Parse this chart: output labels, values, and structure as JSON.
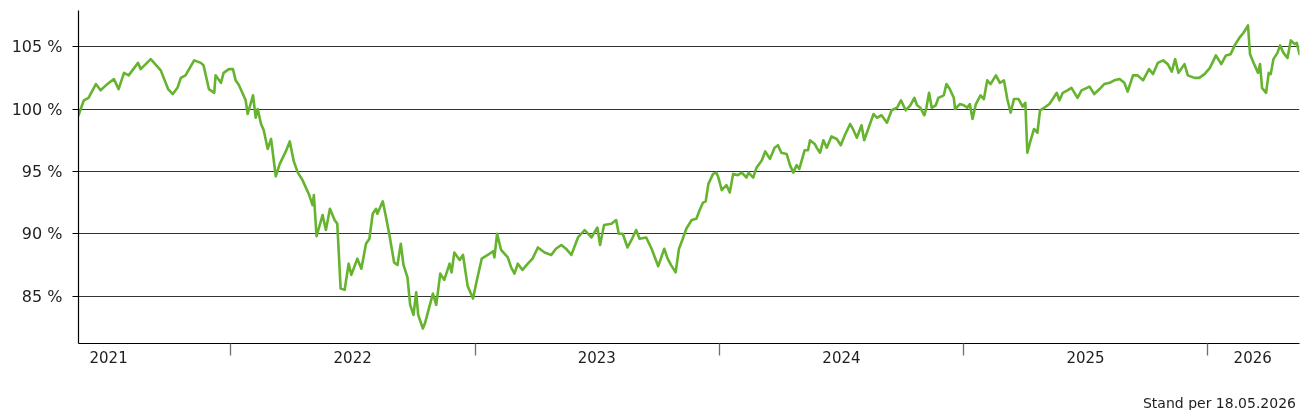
{
  "chart_data": {
    "type": "line",
    "x": [
      "2021-05-18",
      "2021-05-26",
      "2021-06-02",
      "2021-06-13",
      "2021-06-20",
      "2021-06-28",
      "2021-07-10",
      "2021-07-17",
      "2021-07-25",
      "2021-08-01",
      "2021-08-15",
      "2021-08-19",
      "2021-09-03",
      "2021-09-08",
      "2021-09-18",
      "2021-09-29",
      "2021-10-06",
      "2021-10-13",
      "2021-10-18",
      "2021-10-25",
      "2021-11-07",
      "2021-11-17",
      "2021-11-21",
      "2021-11-29",
      "2021-12-07",
      "2021-12-09",
      "2021-12-17",
      "2021-12-21",
      "2021-12-29",
      "2022-01-04",
      "2022-01-08",
      "2022-01-13",
      "2022-01-23",
      "2022-01-26",
      "2022-02-03",
      "2022-02-07",
      "2022-02-10",
      "2022-02-15",
      "2022-02-19",
      "2022-02-25",
      "2022-03-02",
      "2022-03-09",
      "2022-03-15",
      "2022-03-24",
      "2022-03-30",
      "2022-04-05",
      "2022-04-11",
      "2022-04-18",
      "2022-04-28",
      "2022-05-03",
      "2022-05-05",
      "2022-05-09",
      "2022-05-18",
      "2022-05-23",
      "2022-05-29",
      "2022-06-05",
      "2022-06-09",
      "2022-06-14",
      "2022-06-20",
      "2022-06-26",
      "2022-06-30",
      "2022-07-09",
      "2022-07-15",
      "2022-07-22",
      "2022-07-27",
      "2022-08-01",
      "2022-08-06",
      "2022-08-08",
      "2022-08-16",
      "2022-08-21",
      "2022-08-26",
      "2022-09-02",
      "2022-09-07",
      "2022-09-12",
      "2022-09-16",
      "2022-09-22",
      "2022-09-26",
      "2022-10-01",
      "2022-10-05",
      "2022-10-08",
      "2022-10-15",
      "2022-10-18",
      "2022-10-22",
      "2022-10-30",
      "2022-11-04",
      "2022-11-10",
      "2022-11-16",
      "2022-11-24",
      "2022-11-27",
      "2022-12-01",
      "2022-12-09",
      "2022-12-14",
      "2022-12-21",
      "2022-12-29",
      "2023-01-03",
      "2023-01-11",
      "2023-01-20",
      "2023-01-28",
      "2023-01-30",
      "2023-02-03",
      "2023-02-09",
      "2023-02-19",
      "2023-02-24",
      "2023-03-01",
      "2023-03-06",
      "2023-03-13",
      "2023-03-21",
      "2023-03-28",
      "2023-04-05",
      "2023-04-15",
      "2023-04-25",
      "2023-05-02",
      "2023-05-10",
      "2023-05-17",
      "2023-05-25",
      "2023-06-04",
      "2023-06-14",
      "2023-06-24",
      "2023-07-03",
      "2023-07-07",
      "2023-07-13",
      "2023-07-24",
      "2023-07-31",
      "2023-08-04",
      "2023-08-10",
      "2023-08-17",
      "2023-08-23",
      "2023-08-30",
      "2023-09-04",
      "2023-09-14",
      "2023-09-22",
      "2023-09-27",
      "2023-10-02",
      "2023-10-11",
      "2023-10-16",
      "2023-10-21",
      "2023-10-28",
      "2023-11-02",
      "2023-11-07",
      "2023-11-13",
      "2023-11-21",
      "2023-11-28",
      "2023-12-03",
      "2023-12-08",
      "2023-12-12",
      "2023-12-16",
      "2023-12-23",
      "2023-12-28",
      "2023-12-31",
      "2024-01-05",
      "2024-01-12",
      "2024-01-17",
      "2024-01-22",
      "2024-01-29",
      "2024-02-04",
      "2024-02-11",
      "2024-02-14",
      "2024-02-21",
      "2024-02-26",
      "2024-03-05",
      "2024-03-10",
      "2024-03-17",
      "2024-03-24",
      "2024-03-29",
      "2024-04-03",
      "2024-04-11",
      "2024-04-16",
      "2024-04-21",
      "2024-04-26",
      "2024-04-30",
      "2024-05-08",
      "2024-05-13",
      "2024-05-16",
      "2024-05-23",
      "2024-05-26",
      "2024-05-31",
      "2024-06-05",
      "2024-06-10",
      "2024-06-17",
      "2024-06-25",
      "2024-07-01",
      "2024-07-07",
      "2024-07-15",
      "2024-07-20",
      "2024-07-25",
      "2024-08-01",
      "2024-08-05",
      "2024-08-11",
      "2024-08-19",
      "2024-08-24",
      "2024-08-31",
      "2024-09-08",
      "2024-09-15",
      "2024-09-23",
      "2024-09-29",
      "2024-10-06",
      "2024-10-13",
      "2024-10-19",
      "2024-10-23",
      "2024-10-28",
      "2024-11-03",
      "2024-11-06",
      "2024-11-10",
      "2024-11-14",
      "2024-11-20",
      "2024-11-24",
      "2024-12-02",
      "2024-12-06",
      "2024-12-11",
      "2024-12-17",
      "2024-12-19",
      "2024-12-26",
      "2025-01-01",
      "2025-01-06",
      "2025-01-10",
      "2025-01-14",
      "2025-01-19",
      "2025-01-26",
      "2025-01-31",
      "2025-02-05",
      "2025-02-10",
      "2025-02-18",
      "2025-02-24",
      "2025-03-02",
      "2025-03-07",
      "2025-03-12",
      "2025-03-17",
      "2025-03-24",
      "2025-03-30",
      "2025-04-03",
      "2025-04-06",
      "2025-04-11",
      "2025-04-16",
      "2025-04-21",
      "2025-04-25",
      "2025-05-01",
      "2025-05-09",
      "2025-05-14",
      "2025-05-20",
      "2025-05-24",
      "2025-05-29",
      "2025-06-05",
      "2025-06-11",
      "2025-06-20",
      "2025-06-26",
      "2025-07-08",
      "2025-07-15",
      "2025-07-23",
      "2025-07-30",
      "2025-08-07",
      "2025-08-14",
      "2025-08-22",
      "2025-08-29",
      "2025-09-03",
      "2025-09-11",
      "2025-09-18",
      "2025-09-26",
      "2025-10-05",
      "2025-10-11",
      "2025-10-18",
      "2025-10-26",
      "2025-11-02",
      "2025-11-08",
      "2025-11-13",
      "2025-11-18",
      "2025-11-27",
      "2025-12-02",
      "2025-12-12",
      "2025-12-19",
      "2025-12-27",
      "2026-01-04",
      "2026-01-13",
      "2026-01-21",
      "2026-01-28",
      "2026-02-04",
      "2026-02-11",
      "2026-02-17",
      "2026-02-23",
      "2026-03-02",
      "2026-03-05",
      "2026-03-12",
      "2026-03-17",
      "2026-03-20",
      "2026-03-23",
      "2026-03-29",
      "2026-04-02",
      "2026-04-05",
      "2026-04-09",
      "2026-04-15",
      "2026-04-19",
      "2026-04-24",
      "2026-04-30",
      "2026-05-05",
      "2026-05-11",
      "2026-05-14",
      "2026-05-18"
    ],
    "series": [
      {
        "color": "#65b32e",
        "values": [
          99.5,
          100.7,
          100.9,
          102.0,
          101.5,
          101.9,
          102.4,
          101.6,
          102.9,
          102.7,
          103.7,
          103.2,
          104.0,
          103.7,
          103.1,
          101.6,
          101.2,
          101.7,
          102.5,
          102.7,
          103.9,
          103.7,
          103.5,
          101.6,
          101.3,
          102.7,
          102.1,
          102.9,
          103.2,
          103.2,
          102.3,
          101.9,
          100.7,
          99.6,
          101.1,
          99.3,
          100.0,
          98.8,
          98.3,
          96.8,
          97.6,
          94.6,
          95.6,
          96.6,
          97.4,
          95.8,
          94.9,
          94.3,
          93.1,
          92.3,
          93.1,
          89.8,
          91.5,
          90.3,
          92.0,
          91.1,
          90.8,
          85.6,
          85.5,
          87.6,
          86.7,
          88.0,
          87.2,
          89.2,
          89.6,
          91.6,
          92.0,
          91.6,
          92.6,
          91.3,
          89.9,
          87.7,
          87.5,
          89.2,
          87.5,
          86.5,
          84.3,
          83.5,
          85.3,
          83.5,
          82.4,
          82.8,
          83.6,
          85.2,
          84.3,
          86.8,
          86.3,
          87.6,
          86.9,
          88.5,
          87.9,
          88.3,
          85.8,
          84.8,
          86.1,
          88.0,
          88.3,
          88.6,
          88.1,
          90.0,
          88.7,
          88.1,
          87.3,
          86.8,
          87.6,
          87.1,
          87.6,
          88.0,
          88.9,
          88.5,
          88.3,
          88.8,
          89.1,
          88.8,
          88.3,
          89.7,
          90.3,
          89.7,
          90.5,
          89.1,
          90.7,
          90.8,
          91.1,
          90.0,
          90.0,
          88.9,
          89.5,
          90.3,
          89.6,
          89.7,
          88.8,
          88.1,
          87.4,
          88.8,
          88.0,
          87.5,
          86.9,
          88.8,
          89.5,
          90.4,
          91.1,
          91.2,
          91.9,
          92.5,
          92.6,
          94.0,
          94.8,
          94.9,
          94.5,
          93.5,
          93.9,
          93.3,
          94.8,
          94.7,
          94.9,
          94.5,
          94.9,
          94.5,
          95.3,
          95.9,
          96.6,
          96.0,
          96.9,
          97.1,
          96.5,
          96.4,
          95.5,
          94.9,
          95.5,
          95.2,
          96.7,
          96.7,
          97.5,
          97.2,
          96.9,
          96.5,
          97.5,
          96.9,
          97.8,
          97.6,
          97.1,
          97.9,
          98.8,
          98.3,
          97.7,
          98.7,
          97.5,
          98.4,
          99.6,
          99.3,
          99.5,
          98.9,
          99.9,
          100.1,
          100.7,
          99.9,
          100.3,
          100.9,
          100.3,
          100.1,
          99.5,
          100.1,
          101.3,
          100.1,
          100.3,
          100.9,
          101.1,
          102.0,
          101.6,
          100.9,
          100.0,
          100.4,
          100.3,
          100.1,
          100.4,
          99.2,
          100.4,
          101.1,
          100.8,
          102.3,
          102.0,
          102.7,
          102.1,
          102.3,
          100.8,
          99.7,
          100.8,
          100.8,
          100.2,
          100.5,
          96.5,
          97.5,
          98.4,
          98.1,
          99.9,
          100.1,
          100.4,
          100.8,
          101.3,
          100.7,
          101.3,
          101.5,
          101.7,
          100.9,
          101.5,
          101.8,
          101.2,
          101.6,
          102.0,
          102.1,
          102.3,
          102.4,
          102.1,
          101.4,
          102.7,
          102.7,
          102.3,
          103.2,
          102.8,
          103.7,
          103.9,
          103.6,
          103.0,
          104.0,
          102.9,
          103.6,
          102.7,
          102.5,
          102.5,
          102.8,
          103.3,
          104.3,
          103.6,
          104.3,
          104.4,
          105.2,
          105.7,
          106.1,
          106.7,
          104.4,
          103.5,
          102.9,
          103.6,
          101.7,
          101.3,
          102.9,
          102.8,
          104.0,
          104.5,
          105.1,
          104.5,
          104.1,
          105.5,
          105.2,
          105.3,
          104.4
        ]
      }
    ],
    "xlim": [
      "2021-05-18",
      "2026-05-18"
    ],
    "xticks": [
      {
        "value": "2021-07-02",
        "label": "2021"
      },
      {
        "value": "2022-01-01",
        "label": null
      },
      {
        "value": "2022-07-02",
        "label": "2022"
      },
      {
        "value": "2023-01-01",
        "label": null
      },
      {
        "value": "2023-07-02",
        "label": "2023"
      },
      {
        "value": "2024-01-01",
        "label": null
      },
      {
        "value": "2024-07-02",
        "label": "2024"
      },
      {
        "value": "2025-01-01",
        "label": null
      },
      {
        "value": "2025-07-02",
        "label": "2025"
      },
      {
        "value": "2026-01-01",
        "label": null
      },
      {
        "value": "2026-03-09",
        "label": "2026"
      }
    ],
    "ylim": [
      81.2,
      107.9
    ],
    "yticks": [
      {
        "value": 85,
        "label": "85 %"
      },
      {
        "value": 90,
        "label": "90 %"
      },
      {
        "value": 95,
        "label": "95 %"
      },
      {
        "value": 100,
        "label": "100 %"
      },
      {
        "value": 105,
        "label": "105 %"
      }
    ],
    "grid": "y",
    "annotations": [
      "Stand per 18.05.2026"
    ]
  }
}
